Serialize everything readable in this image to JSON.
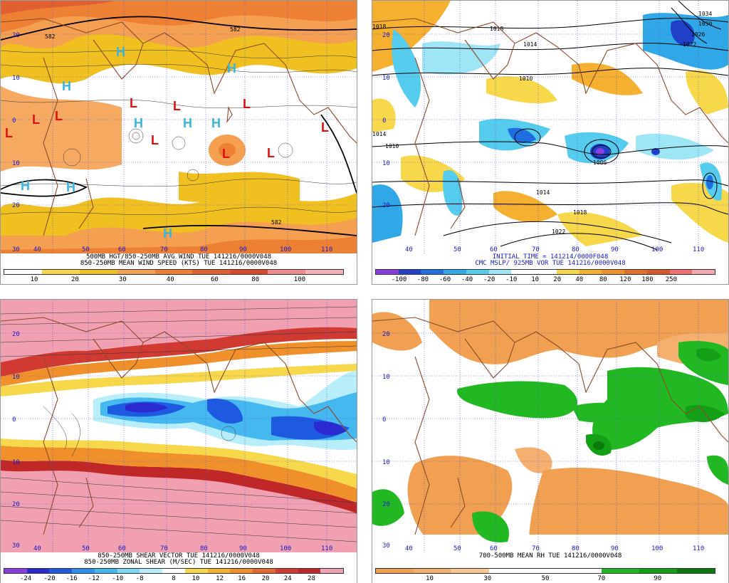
{
  "panels": [
    {
      "id": "wind",
      "caption1": "500MB HGT/850-250MB AVG WIND TUE 141216/0000V048",
      "caption2": "850-250MB MEAN WIND SPEED (KTS) TUE 141216/0000V048",
      "colorbar": [
        "#ffffff",
        "#f9d44a",
        "#f0c020",
        "#f5a050",
        "#ee8033",
        "#e06030",
        "#d84a2a",
        "#ee8a8a",
        "#f5b0b8"
      ],
      "ticks": [
        "10",
        "20",
        "30",
        "40",
        "60",
        "80",
        "100"
      ],
      "markers_H": [
        "H",
        "H",
        "H",
        "H",
        "H",
        "H",
        "H",
        "H",
        "H"
      ],
      "markers_L": [
        "L",
        "L",
        "L",
        "L",
        "L",
        "L",
        "L",
        "L",
        "L",
        "L"
      ],
      "contour_labels": [
        "582",
        "582",
        "582"
      ]
    },
    {
      "id": "mslp",
      "caption1": "INITIAL TIME = 141214/0000F048",
      "caption2": "CMC MSLP/ 925MB VOR TUE 141216/0000V048",
      "colorbar": [
        "#8a3ee0",
        "#2040c8",
        "#1e6ee0",
        "#30a8e8",
        "#55ccee",
        "#9ee6f6",
        "#ffffff",
        "#ffffff",
        "#f6d84a",
        "#f5b030",
        "#f0902a",
        "#e07028",
        "#d85a2a",
        "#f07070",
        "#f5a8b0"
      ],
      "ticks": [
        "-100",
        "-80",
        "-60",
        "-40",
        "-20",
        "-10",
        "10",
        "20",
        "40",
        "80",
        "120",
        "180",
        "250"
      ],
      "isobar_labels": [
        "1018",
        "1014",
        "1010",
        "1010",
        "1006",
        "1014",
        "1018",
        "1022",
        "1018",
        "1014",
        "1034",
        "1030",
        "1026",
        "1022"
      ]
    },
    {
      "id": "shear",
      "caption1": "850-250MB SHEAR VECTOR TUE 141216/0000V048",
      "caption2": "850-250MB ZONAL SHEAR (M/SEC) TUE 141216/0000V048",
      "colorbar": [
        "#8a3ee0",
        "#2a2ad0",
        "#1e5ae0",
        "#2e90e8",
        "#46b8f0",
        "#7ed8f6",
        "#b8eefa",
        "#ffffff",
        "#f6d84a",
        "#f5b030",
        "#f0902a",
        "#e06a30",
        "#d03a30",
        "#c02828",
        "#f0a0b0"
      ],
      "ticks": [
        "-24",
        "-20",
        "-16",
        "-12",
        "-10",
        "-8",
        "8",
        "10",
        "12",
        "16",
        "20",
        "24",
        "28"
      ]
    },
    {
      "id": "rh",
      "caption1": "700-500MB MEAN RH TUE 141216/0000V048",
      "caption2": "",
      "colorbar": [
        "#f0a050",
        "#f5b070",
        "#f8c890",
        "#ffffff",
        "#ffffff",
        "#ffffff",
        "#22b822",
        "#14a014",
        "#0a7a0a"
      ],
      "ticks": [
        "10",
        "30",
        "50",
        "70",
        "90"
      ]
    }
  ],
  "grid": {
    "lon_labels": [
      "40",
      "50",
      "60",
      "70",
      "80",
      "90",
      "100",
      "110"
    ],
    "lat_labels": [
      "20",
      "10",
      "0",
      "10",
      "20",
      "30"
    ]
  }
}
